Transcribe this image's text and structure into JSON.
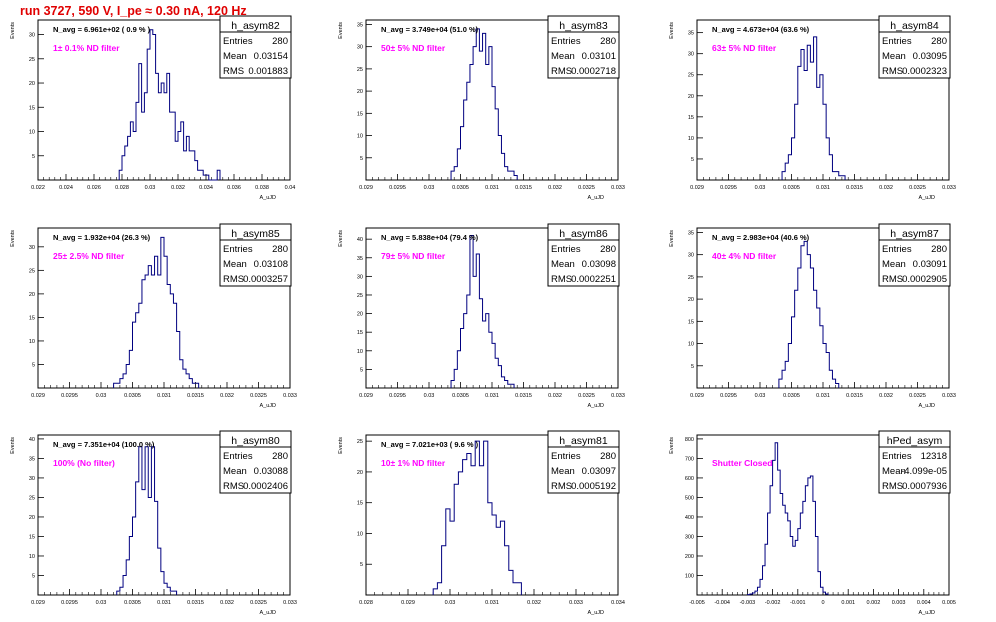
{
  "title": "run 3727,   590 V, I_pe ≈ 0.30 nA, 120 Hz",
  "colors": {
    "hist": "#000080",
    "label": "#ff00ff",
    "title": "#e00000"
  },
  "chart_data": [
    {
      "type": "bar",
      "name": "h_asym82",
      "label": "1± 0.1% ND filter",
      "navg": "N_avg = 6.961e+02 ( 0.9 % )",
      "stats": {
        "entries": "280",
        "mean": "0.03154",
        "rms": "0.001883"
      },
      "xrange": [
        0.022,
        0.04
      ],
      "ymax": 33,
      "xticks": [
        0.022,
        0.024,
        0.026,
        0.028,
        0.03,
        0.032,
        0.034,
        0.036,
        0.038,
        0.04
      ],
      "xtick_labels": [
        "0.022",
        "0.024",
        "0.026",
        "0.028",
        "0.03",
        "0.032",
        "0.034",
        "0.036",
        "0.038",
        "0.04"
      ],
      "yticks": [
        5,
        10,
        15,
        20,
        25,
        30
      ],
      "ylabel": "Events",
      "xlabel": "A_uJD",
      "bins_start": 0.0278,
      "bin_width": 0.0002,
      "counts": [
        2,
        5,
        7,
        9,
        12,
        10,
        16,
        24,
        14,
        18,
        27,
        31,
        30,
        22,
        18,
        20,
        18,
        22,
        14,
        14,
        8,
        10,
        12,
        6,
        9,
        6,
        6,
        4,
        2,
        2,
        1,
        1,
        0,
        0,
        0,
        2
      ]
    },
    {
      "type": "bar",
      "name": "h_asym83",
      "label": "50± 5% ND filter",
      "navg": "N_avg = 3.749e+04 (51.0 %)",
      "stats": {
        "entries": "280",
        "mean": "0.03101",
        "rms": "0.0002718"
      },
      "xrange": [
        0.029,
        0.033
      ],
      "ymax": 36,
      "xticks": [
        0.029,
        0.0295,
        0.03,
        0.0305,
        0.031,
        0.0315,
        0.032,
        0.0325,
        0.033
      ],
      "xtick_labels": [
        "0.029",
        "0.0295",
        "0.03",
        "0.0305",
        "0.031",
        "0.0315",
        "0.032",
        "0.0325",
        "0.033"
      ],
      "yticks": [
        5,
        10,
        15,
        20,
        25,
        30,
        35
      ],
      "ylabel": "Events",
      "xlabel": "A_uJD",
      "bins_start": 0.03035,
      "bin_width": 5e-05,
      "counts": [
        2,
        3,
        7,
        12,
        18,
        22,
        26,
        30,
        34,
        29,
        33,
        26,
        30,
        21,
        16,
        10,
        6,
        3,
        2,
        2,
        1
      ]
    },
    {
      "type": "bar",
      "name": "h_asym84",
      "label": "63± 5% ND filter",
      "navg": "N_avg = 4.673e+04 (63.6 %)",
      "stats": {
        "entries": "280",
        "mean": "0.03095",
        "rms": "0.0002323"
      },
      "xrange": [
        0.029,
        0.033
      ],
      "ymax": 38,
      "xticks": [
        0.029,
        0.0295,
        0.03,
        0.0305,
        0.031,
        0.0315,
        0.032,
        0.0325,
        0.033
      ],
      "xtick_labels": [
        "0.029",
        "0.0295",
        "0.03",
        "0.0305",
        "0.031",
        "0.0315",
        "0.032",
        "0.0325",
        "0.033"
      ],
      "yticks": [
        5,
        10,
        15,
        20,
        25,
        30,
        35
      ],
      "ylabel": "Events",
      "xlabel": "A_uJD",
      "bins_start": 0.03035,
      "bin_width": 5e-05,
      "counts": [
        2,
        4,
        6,
        10,
        18,
        27,
        31,
        26,
        32,
        28,
        34,
        22,
        25,
        18,
        10,
        6,
        2,
        2,
        1,
        1
      ]
    },
    {
      "type": "bar",
      "name": "h_asym85",
      "label": "25± 2.5% ND filter",
      "navg": "N_avg = 1.932e+04 (26.3 %)",
      "stats": {
        "entries": "280",
        "mean": "0.03108",
        "rms": "0.0003257"
      },
      "xrange": [
        0.029,
        0.033
      ],
      "ymax": 34,
      "xticks": [
        0.029,
        0.0295,
        0.03,
        0.0305,
        0.031,
        0.0315,
        0.032,
        0.0325,
        0.033
      ],
      "xtick_labels": [
        "0.029",
        "0.0295",
        "0.03",
        "0.0305",
        "0.031",
        "0.0315",
        "0.032",
        "0.0325",
        "0.033"
      ],
      "yticks": [
        5,
        10,
        15,
        20,
        25,
        30
      ],
      "ylabel": "Events",
      "xlabel": "A_uJD",
      "bins_start": 0.0302,
      "bin_width": 5e-05,
      "counts": [
        1,
        1,
        2,
        3,
        5,
        8,
        14,
        16,
        18,
        23,
        24,
        26,
        24,
        28,
        24,
        32,
        28,
        22,
        20,
        18,
        12,
        6,
        4,
        3,
        2,
        1,
        1
      ]
    },
    {
      "type": "bar",
      "name": "h_asym86",
      "label": "79± 5% ND filter",
      "navg": "N_avg = 5.838e+04 (79.4 %)",
      "stats": {
        "entries": "280",
        "mean": "0.03098",
        "rms": "0.0002251"
      },
      "xrange": [
        0.029,
        0.033
      ],
      "ymax": 43,
      "xticks": [
        0.029,
        0.0295,
        0.03,
        0.0305,
        0.031,
        0.0315,
        0.032,
        0.0325,
        0.033
      ],
      "xtick_labels": [
        "0.029",
        "0.0295",
        "0.03",
        "0.0305",
        "0.031",
        "0.0315",
        "0.032",
        "0.0325",
        "0.033"
      ],
      "yticks": [
        5,
        10,
        15,
        20,
        25,
        30,
        35,
        40
      ],
      "ylabel": "Events",
      "xlabel": "A_uJD",
      "bins_start": 0.03035,
      "bin_width": 5e-05,
      "counts": [
        2,
        5,
        10,
        16,
        20,
        25,
        41,
        30,
        36,
        24,
        18,
        20,
        15,
        12,
        8,
        6,
        3,
        2,
        1,
        1
      ]
    },
    {
      "type": "bar",
      "name": "h_asym87",
      "label": "40± 4% ND filter",
      "navg": "N_avg = 2.983e+04 (40.6 %)",
      "stats": {
        "entries": "280",
        "mean": "0.03091",
        "rms": "0.0002905"
      },
      "xrange": [
        0.029,
        0.033
      ],
      "ymax": 36,
      "xticks": [
        0.029,
        0.0295,
        0.03,
        0.0305,
        0.031,
        0.0315,
        0.032,
        0.0325,
        0.033
      ],
      "xtick_labels": [
        "0.029",
        "0.0295",
        "0.03",
        "0.0305",
        "0.031",
        "0.0315",
        "0.032",
        "0.0325",
        "0.033"
      ],
      "yticks": [
        5,
        10,
        15,
        20,
        25,
        30,
        35
      ],
      "ylabel": "Events",
      "xlabel": "A_uJD",
      "bins_start": 0.0303,
      "bin_width": 5e-05,
      "counts": [
        2,
        4,
        6,
        10,
        16,
        22,
        27,
        32,
        33,
        30,
        27,
        22,
        18,
        14,
        10,
        8,
        4,
        2,
        1
      ]
    },
    {
      "type": "bar",
      "name": "h_asym80",
      "label": "100% (No filter)",
      "navg": "N_avg = 7.351e+04 (100.0 %)",
      "stats": {
        "entries": "280",
        "mean": "0.03088",
        "rms": "0.0002406"
      },
      "xrange": [
        0.029,
        0.033
      ],
      "ymax": 41,
      "xticks": [
        0.029,
        0.0295,
        0.03,
        0.0305,
        0.031,
        0.0315,
        0.032,
        0.0325,
        0.033
      ],
      "xtick_labels": [
        "0.029",
        "0.0295",
        "0.03",
        "0.0305",
        "0.031",
        "0.0315",
        "0.032",
        "0.0325",
        "0.033"
      ],
      "yticks": [
        5,
        10,
        15,
        20,
        25,
        30,
        35,
        40
      ],
      "ylabel": "Events",
      "xlabel": "A_uJD",
      "bins_start": 0.03025,
      "bin_width": 5e-05,
      "counts": [
        1,
        2,
        5,
        9,
        15,
        20,
        29,
        38,
        27,
        38,
        25,
        38,
        24,
        12,
        6,
        3,
        2,
        1,
        1
      ]
    },
    {
      "type": "bar",
      "name": "h_asym81",
      "label": "10± 1% ND filter",
      "navg": "N_avg = 7.021e+03 ( 9.6 % )",
      "stats": {
        "entries": "280",
        "mean": "0.03097",
        "rms": "0.0005192"
      },
      "xrange": [
        0.028,
        0.034
      ],
      "ymax": 26,
      "xticks": [
        0.028,
        0.029,
        0.03,
        0.031,
        0.032,
        0.033,
        0.034
      ],
      "xtick_labels": [
        "0.028",
        "0.029",
        "0.03",
        "0.031",
        "0.032",
        "0.033",
        "0.034"
      ],
      "yticks": [
        5,
        10,
        15,
        20,
        25
      ],
      "ylabel": "Events",
      "xlabel": "A_uJD",
      "bins_start": 0.0296,
      "bin_width": 0.0001,
      "counts": [
        1,
        2,
        8,
        14,
        12,
        18,
        20,
        22,
        23,
        21,
        25,
        21,
        25,
        15,
        13,
        11,
        12,
        8,
        4,
        2,
        2
      ]
    },
    {
      "type": "bar",
      "name": "hPed_asym",
      "label": "Shutter Closed",
      "navg": "",
      "stats": {
        "entries": "12318",
        "mean": "-4.099e-05",
        "rms": "0.0007936"
      },
      "xrange": [
        -0.005,
        0.005
      ],
      "ymax": 820,
      "xticks": [
        -0.005,
        -0.004,
        -0.003,
        -0.002,
        -0.001,
        0,
        0.001,
        0.002,
        0.003,
        0.004,
        0.005
      ],
      "xtick_labels": [
        "-0.005",
        "-0.004",
        "-0.003",
        "-0.002",
        "-0.001",
        "0",
        "0.001",
        "0.002",
        "0.003",
        "0.004",
        "0.005"
      ],
      "yticks": [
        100,
        200,
        300,
        400,
        500,
        600,
        700,
        800
      ],
      "ylabel": "Events",
      "xlabel": "A_uJD",
      "bins_start": -0.003,
      "bin_width": 0.0001,
      "counts": [
        2,
        5,
        10,
        20,
        40,
        80,
        150,
        260,
        420,
        560,
        690,
        780,
        640,
        520,
        460,
        420,
        380,
        300,
        250,
        280,
        340,
        420,
        480,
        560,
        600,
        610,
        480,
        300,
        120,
        40,
        15,
        5
      ]
    }
  ]
}
